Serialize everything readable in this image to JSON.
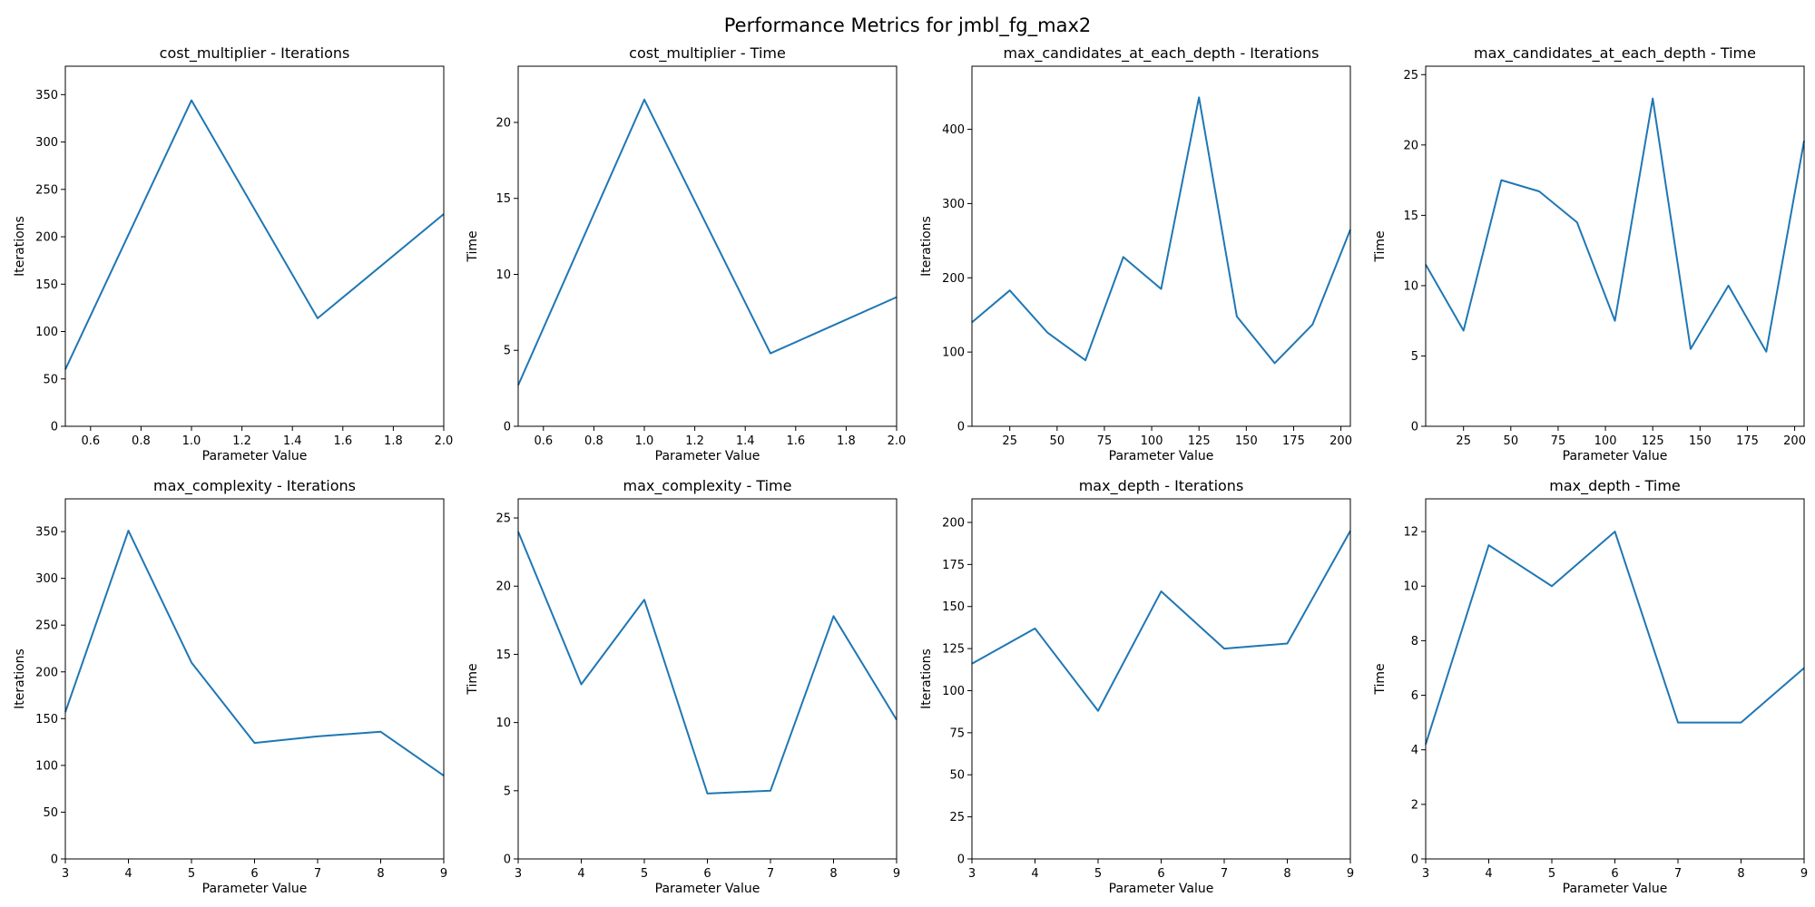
{
  "figure": {
    "title": "Performance Metrics for jmbl_fg_max2",
    "line_color": "#1f77b4"
  },
  "chart_data": [
    {
      "type": "line",
      "title": "cost_multiplier - Iterations",
      "xlabel": "Parameter Value",
      "ylabel": "Iterations",
      "xlim": [
        0.5,
        2.0
      ],
      "ylim": [
        0,
        380
      ],
      "xticks": [
        0.6,
        0.8,
        1.0,
        1.2,
        1.4,
        1.6,
        1.8,
        2.0
      ],
      "xtick_labels": [
        "0.6",
        "0.8",
        "1.0",
        "1.2",
        "1.4",
        "1.6",
        "1.8",
        "2.0"
      ],
      "yticks": [
        0,
        50,
        100,
        150,
        200,
        250,
        300,
        350
      ],
      "ytick_labels": [
        "0",
        "50",
        "100",
        "150",
        "200",
        "250",
        "300",
        "350"
      ],
      "x": [
        0.5,
        1.0,
        1.5,
        2.0
      ],
      "y": [
        60,
        344,
        114,
        224
      ]
    },
    {
      "type": "line",
      "title": "cost_multiplier - Time",
      "xlabel": "Parameter Value",
      "ylabel": "Time",
      "xlim": [
        0.5,
        2.0
      ],
      "ylim": [
        0,
        23.7
      ],
      "xticks": [
        0.6,
        0.8,
        1.0,
        1.2,
        1.4,
        1.6,
        1.8,
        2.0
      ],
      "xtick_labels": [
        "0.6",
        "0.8",
        "1.0",
        "1.2",
        "1.4",
        "1.6",
        "1.8",
        "2.0"
      ],
      "yticks": [
        0,
        5,
        10,
        15,
        20
      ],
      "ytick_labels": [
        "0",
        "5",
        "10",
        "15",
        "20"
      ],
      "x": [
        0.5,
        1.0,
        1.5,
        2.0
      ],
      "y": [
        2.7,
        21.5,
        4.8,
        8.5
      ]
    },
    {
      "type": "line",
      "title": "max_candidates_at_each_depth - Iterations",
      "xlabel": "Parameter Value",
      "ylabel": "Iterations",
      "xlim": [
        5,
        205
      ],
      "ylim": [
        0,
        485
      ],
      "xticks": [
        25,
        50,
        75,
        100,
        125,
        150,
        175,
        200
      ],
      "xtick_labels": [
        "25",
        "50",
        "75",
        "100",
        "125",
        "150",
        "175",
        "200"
      ],
      "yticks": [
        0,
        100,
        200,
        300,
        400
      ],
      "ytick_labels": [
        "0",
        "100",
        "200",
        "300",
        "400"
      ],
      "x": [
        5,
        25,
        45,
        65,
        85,
        105,
        125,
        145,
        165,
        185,
        205
      ],
      "y": [
        140,
        183,
        126,
        89,
        228,
        185,
        443,
        148,
        85,
        137,
        265
      ]
    },
    {
      "type": "line",
      "title": "max_candidates_at_each_depth - Time",
      "xlabel": "Parameter Value",
      "ylabel": "Time",
      "xlim": [
        5,
        205
      ],
      "ylim": [
        0,
        25.6
      ],
      "xticks": [
        25,
        50,
        75,
        100,
        125,
        150,
        175,
        200
      ],
      "xtick_labels": [
        "25",
        "50",
        "75",
        "100",
        "125",
        "150",
        "175",
        "200"
      ],
      "yticks": [
        0,
        5,
        10,
        15,
        20,
        25
      ],
      "ytick_labels": [
        "0",
        "5",
        "10",
        "15",
        "20",
        "25"
      ],
      "x": [
        5,
        25,
        45,
        65,
        85,
        105,
        125,
        145,
        165,
        185,
        205
      ],
      "y": [
        11.5,
        6.8,
        17.5,
        16.7,
        14.5,
        7.5,
        23.3,
        5.5,
        10.0,
        5.3,
        20.3
      ]
    },
    {
      "type": "line",
      "title": "max_complexity - Iterations",
      "xlabel": "Parameter Value",
      "ylabel": "Iterations",
      "xlim": [
        3,
        9
      ],
      "ylim": [
        0,
        385
      ],
      "xticks": [
        3,
        4,
        5,
        6,
        7,
        8,
        9
      ],
      "xtick_labels": [
        "3",
        "4",
        "5",
        "6",
        "7",
        "8",
        "9"
      ],
      "yticks": [
        0,
        50,
        100,
        150,
        200,
        250,
        300,
        350
      ],
      "ytick_labels": [
        "0",
        "50",
        "100",
        "150",
        "200",
        "250",
        "300",
        "350"
      ],
      "x": [
        3,
        4,
        5,
        6,
        7,
        8,
        9
      ],
      "y": [
        157,
        351,
        210,
        124,
        131,
        136,
        89
      ]
    },
    {
      "type": "line",
      "title": "max_complexity - Time",
      "xlabel": "Parameter Value",
      "ylabel": "Time",
      "xlim": [
        3,
        9
      ],
      "ylim": [
        0,
        26.4
      ],
      "xticks": [
        3,
        4,
        5,
        6,
        7,
        8,
        9
      ],
      "xtick_labels": [
        "3",
        "4",
        "5",
        "6",
        "7",
        "8",
        "9"
      ],
      "yticks": [
        0,
        5,
        10,
        15,
        20,
        25
      ],
      "ytick_labels": [
        "0",
        "5",
        "10",
        "15",
        "20",
        "25"
      ],
      "x": [
        3,
        4,
        5,
        6,
        7,
        8,
        9
      ],
      "y": [
        24.0,
        12.8,
        19.0,
        4.8,
        5.0,
        17.8,
        10.2
      ]
    },
    {
      "type": "line",
      "title": "max_depth - Iterations",
      "xlabel": "Parameter Value",
      "ylabel": "Iterations",
      "xlim": [
        3,
        9
      ],
      "ylim": [
        0,
        214
      ],
      "xticks": [
        3,
        4,
        5,
        6,
        7,
        8,
        9
      ],
      "xtick_labels": [
        "3",
        "4",
        "5",
        "6",
        "7",
        "8",
        "9"
      ],
      "yticks": [
        0,
        25,
        50,
        75,
        100,
        125,
        150,
        175,
        200
      ],
      "ytick_labels": [
        "0",
        "25",
        "50",
        "75",
        "100",
        "125",
        "150",
        "175",
        "200"
      ],
      "x": [
        3,
        4,
        5,
        6,
        7,
        8,
        9
      ],
      "y": [
        116,
        137,
        88,
        159,
        125,
        128,
        195
      ]
    },
    {
      "type": "line",
      "title": "max_depth - Time",
      "xlabel": "Parameter Value",
      "ylabel": "Time",
      "xlim": [
        3,
        9
      ],
      "ylim": [
        0,
        13.2
      ],
      "xticks": [
        3,
        4,
        5,
        6,
        7,
        8,
        9
      ],
      "xtick_labels": [
        "3",
        "4",
        "5",
        "6",
        "7",
        "8",
        "9"
      ],
      "yticks": [
        0,
        2,
        4,
        6,
        8,
        10,
        12
      ],
      "ytick_labels": [
        "0",
        "2",
        "4",
        "6",
        "8",
        "10",
        "12"
      ],
      "x": [
        3,
        4,
        5,
        6,
        7,
        8,
        9
      ],
      "y": [
        4.2,
        11.5,
        10.0,
        12.0,
        5.0,
        5.0,
        7.0
      ]
    }
  ]
}
